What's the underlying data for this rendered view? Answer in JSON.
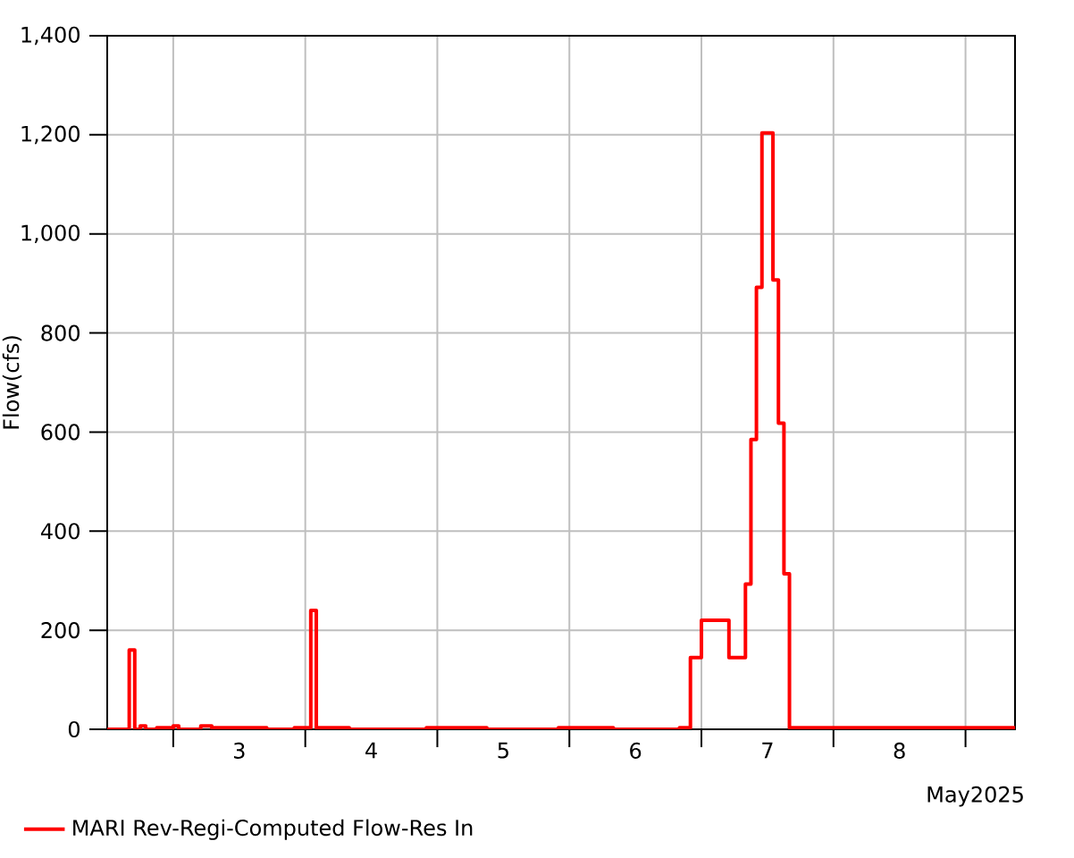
{
  "chart_data": {
    "type": "step",
    "ylabel": "Flow(cfs)",
    "xlabel": "May2025",
    "xlim": [
      "2025-05-02T12:00",
      "2025-05-09T09:00"
    ],
    "xticks": [
      {
        "value": "2025-05-03T00:00",
        "label": null
      },
      {
        "value": "2025-05-04T00:00",
        "label": null
      },
      {
        "value": "2025-05-05T00:00",
        "label": null
      },
      {
        "value": "2025-05-06T00:00",
        "label": null
      },
      {
        "value": "2025-05-07T00:00",
        "label": null
      },
      {
        "value": "2025-05-08T00:00",
        "label": null
      },
      {
        "value": "2025-05-09T00:00",
        "label": null
      },
      {
        "value": "2025-05-03T12:00",
        "label": "3"
      },
      {
        "value": "2025-05-04T12:00",
        "label": "4"
      },
      {
        "value": "2025-05-05T12:00",
        "label": "5"
      },
      {
        "value": "2025-05-06T12:00",
        "label": "6"
      },
      {
        "value": "2025-05-07T12:00",
        "label": "7"
      },
      {
        "value": "2025-05-08T12:00",
        "label": "8"
      }
    ],
    "ylim": [
      0,
      1400
    ],
    "yticks": [
      0,
      200,
      400,
      600,
      800,
      {
        "value": 1000,
        "label": "1,000"
      },
      {
        "value": 1200,
        "label": "1,200"
      },
      {
        "value": 1400,
        "label": "1,400"
      }
    ],
    "grid": true,
    "legend": "bottom",
    "line_style": "solid",
    "series": [
      {
        "name": "MARI Rev-Regi-Computed Flow-Res In",
        "color": "#ff0000",
        "x": [
          "2025-05-02T12:00",
          "2025-05-02T16:00",
          "2025-05-02T17:00",
          "2025-05-02T18:00",
          "2025-05-02T19:00",
          "2025-05-02T21:00",
          "2025-05-03T00:00",
          "2025-05-03T01:00",
          "2025-05-03T05:00",
          "2025-05-03T07:00",
          "2025-05-03T17:00",
          "2025-05-03T22:00",
          "2025-05-04T01:00",
          "2025-05-04T02:00",
          "2025-05-04T08:00",
          "2025-05-04T22:00",
          "2025-05-05T09:00",
          "2025-05-05T22:00",
          "2025-05-06T08:00",
          "2025-05-06T20:00",
          "2025-05-06T22:00",
          "2025-05-07T00:00",
          "2025-05-07T05:00",
          "2025-05-07T08:00",
          "2025-05-07T09:00",
          "2025-05-07T10:00",
          "2025-05-07T11:00",
          "2025-05-07T13:00",
          "2025-05-07T14:00",
          "2025-05-07T15:00",
          "2025-05-07T16:00",
          "2025-05-09T09:00"
        ],
        "values": [
          0,
          160,
          0,
          7,
          0,
          3,
          7,
          0,
          7,
          3,
          0,
          3,
          240,
          3,
          0,
          3,
          0,
          3,
          0,
          3,
          145,
          220,
          145,
          293,
          585,
          892,
          1204,
          907,
          618,
          314,
          3,
          3
        ]
      }
    ]
  }
}
